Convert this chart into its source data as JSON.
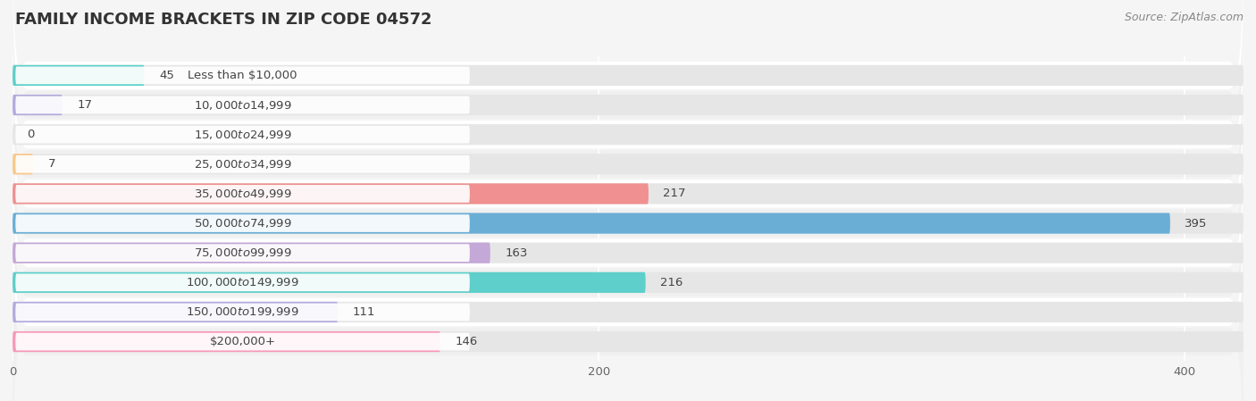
{
  "title": "FAMILY INCOME BRACKETS IN ZIP CODE 04572",
  "source": "Source: ZipAtlas.com",
  "categories": [
    "Less than $10,000",
    "$10,000 to $14,999",
    "$15,000 to $24,999",
    "$25,000 to $34,999",
    "$35,000 to $49,999",
    "$50,000 to $74,999",
    "$75,000 to $99,999",
    "$100,000 to $149,999",
    "$150,000 to $199,999",
    "$200,000+"
  ],
  "values": [
    45,
    17,
    0,
    7,
    217,
    395,
    163,
    216,
    111,
    146
  ],
  "bar_colors": [
    "#5ECFCA",
    "#B3AADD",
    "#F799A8",
    "#F9C98A",
    "#F09090",
    "#6AAED6",
    "#C4A8D8",
    "#5ECFCA",
    "#B3AADD",
    "#F799B8"
  ],
  "background_color": "#f5f5f5",
  "bar_background_color": "#e6e6e6",
  "xlim_max": 420,
  "data_max": 400,
  "title_fontsize": 13,
  "label_fontsize": 9.5,
  "value_fontsize": 9.5,
  "source_fontsize": 9
}
